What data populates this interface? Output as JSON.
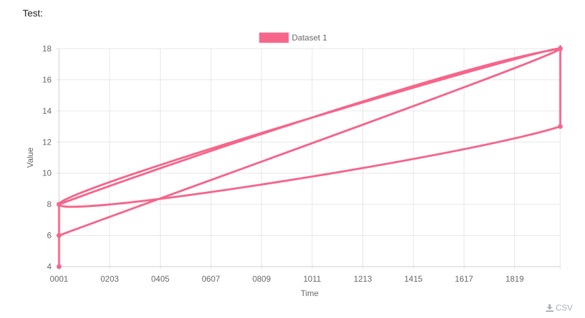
{
  "page": {
    "title": "Test:"
  },
  "toolbar": {
    "csv_label": "CSV"
  },
  "colors": {
    "series": "#f6658a",
    "grid": "#e6e6e6",
    "text": "#666666"
  },
  "chart_data": {
    "type": "line",
    "title": "",
    "xlabel": "Time",
    "ylabel": "Value",
    "xlim": [
      0,
      2000
    ],
    "ylim": [
      4,
      18
    ],
    "x_ticks": [
      0,
      202,
      404,
      606,
      808,
      1010,
      1212,
      1414,
      1616,
      1818
    ],
    "x_tick_labels": [
      "0001",
      "0203",
      "0405",
      "0607",
      "0809",
      "1011",
      "1213",
      "1415",
      "1617",
      "1819"
    ],
    "y_ticks": [
      4,
      6,
      8,
      10,
      12,
      14,
      16,
      18
    ],
    "grid": true,
    "legend": "top-center",
    "series": [
      {
        "name": "Dataset 1",
        "x": [
          0,
          0,
          0,
          2000,
          2000,
          0,
          2000,
          0
        ],
        "y": [
          4,
          6,
          8,
          18,
          13,
          8,
          18,
          6
        ]
      }
    ]
  }
}
